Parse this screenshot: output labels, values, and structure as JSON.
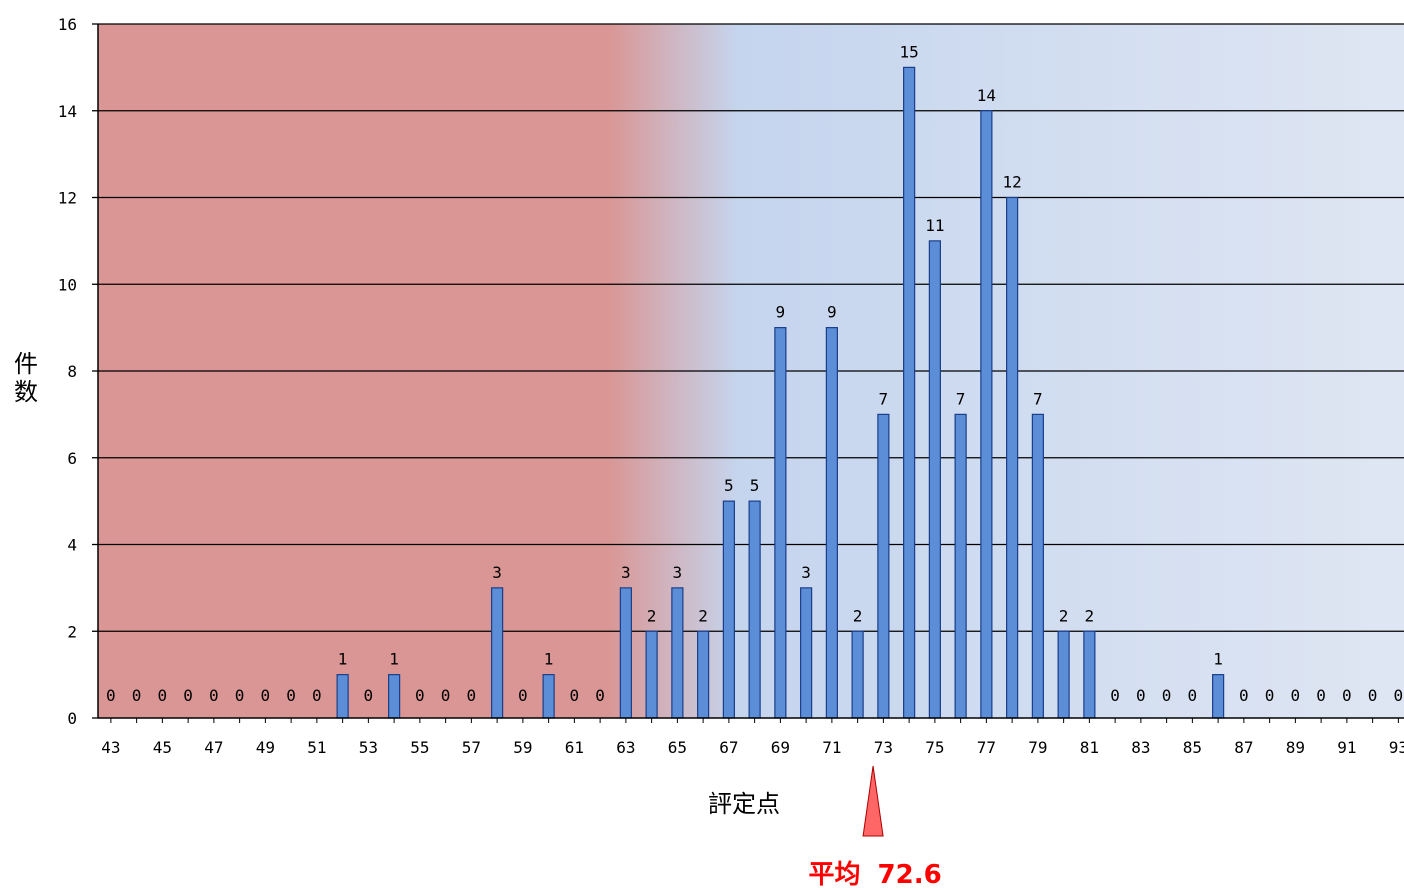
{
  "chart_data": {
    "type": "bar",
    "xlabel": "評定点",
    "ylabel": "件数",
    "ylim": [
      0,
      16
    ],
    "yticks": [
      0,
      2,
      4,
      6,
      8,
      10,
      12,
      14,
      16
    ],
    "xtick_labels": [
      43,
      45,
      47,
      49,
      51,
      53,
      55,
      57,
      59,
      61,
      63,
      65,
      67,
      69,
      71,
      73,
      75,
      77,
      79,
      81,
      83,
      85,
      87,
      89,
      91,
      93
    ],
    "grid": true,
    "categories": [
      43,
      44,
      45,
      46,
      47,
      48,
      49,
      50,
      51,
      52,
      53,
      54,
      55,
      56,
      57,
      58,
      59,
      60,
      61,
      62,
      63,
      64,
      65,
      66,
      67,
      68,
      69,
      70,
      71,
      72,
      73,
      74,
      75,
      76,
      77,
      78,
      79,
      80,
      81,
      82,
      83,
      84,
      85,
      86,
      87,
      88,
      89,
      90,
      91,
      92,
      93
    ],
    "values": [
      0,
      0,
      0,
      0,
      0,
      0,
      0,
      0,
      0,
      1,
      0,
      1,
      0,
      0,
      0,
      3,
      0,
      1,
      0,
      0,
      3,
      2,
      3,
      2,
      5,
      5,
      9,
      3,
      9,
      2,
      7,
      15,
      11,
      7,
      14,
      12,
      7,
      2,
      2,
      0,
      0,
      0,
      0,
      1,
      0,
      0,
      0,
      0,
      0,
      0,
      0
    ],
    "annotation": {
      "label": "平均",
      "value": "72.6",
      "x": 72.6
    },
    "colors": {
      "bar_fill": "#5b8ed6",
      "bar_stroke": "#1a3d8a",
      "background_low": "#d99694",
      "background_high": "#c5d5ee",
      "background_far": "#dfe6f3",
      "mean_marker": "#ff6666",
      "mean_text": "#ff0000"
    }
  }
}
